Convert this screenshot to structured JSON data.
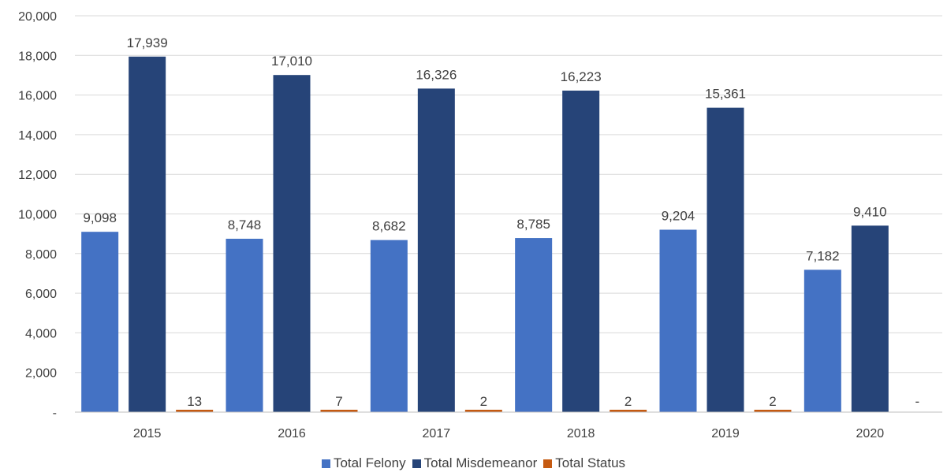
{
  "chart_data": {
    "type": "bar",
    "categories": [
      "2015",
      "2016",
      "2017",
      "2018",
      "2019",
      "2020"
    ],
    "series": [
      {
        "name": "Total Felony",
        "color": "#4472C4",
        "values": [
          9098,
          8748,
          8682,
          8785,
          9204,
          7182
        ],
        "labels": [
          "9,098",
          "8,748",
          "8,682",
          "8,785",
          "9,204",
          "7,182"
        ]
      },
      {
        "name": "Total Misdemeanor",
        "color": "#264478",
        "values": [
          17939,
          17010,
          16326,
          16223,
          15361,
          9410
        ],
        "labels": [
          "17,939",
          "17,010",
          "16,326",
          "16,223",
          "15,361",
          "9,410"
        ]
      },
      {
        "name": "Total Status",
        "color": "#C55A11",
        "values": [
          13,
          7,
          2,
          2,
          2,
          0
        ],
        "labels": [
          "13",
          "7",
          "2",
          "2",
          "2",
          "-"
        ]
      }
    ],
    "ylim": [
      0,
      20000
    ],
    "yticks": [
      0,
      2000,
      4000,
      6000,
      8000,
      10000,
      12000,
      14000,
      16000,
      18000,
      20000
    ],
    "ytick_labels": [
      "-",
      "2,000",
      "4,000",
      "6,000",
      "8,000",
      "10,000",
      "12,000",
      "14,000",
      "16,000",
      "18,000",
      "20,000"
    ],
    "grid": true,
    "legend_position": "bottom",
    "title": "",
    "xlabel": "",
    "ylabel": ""
  }
}
